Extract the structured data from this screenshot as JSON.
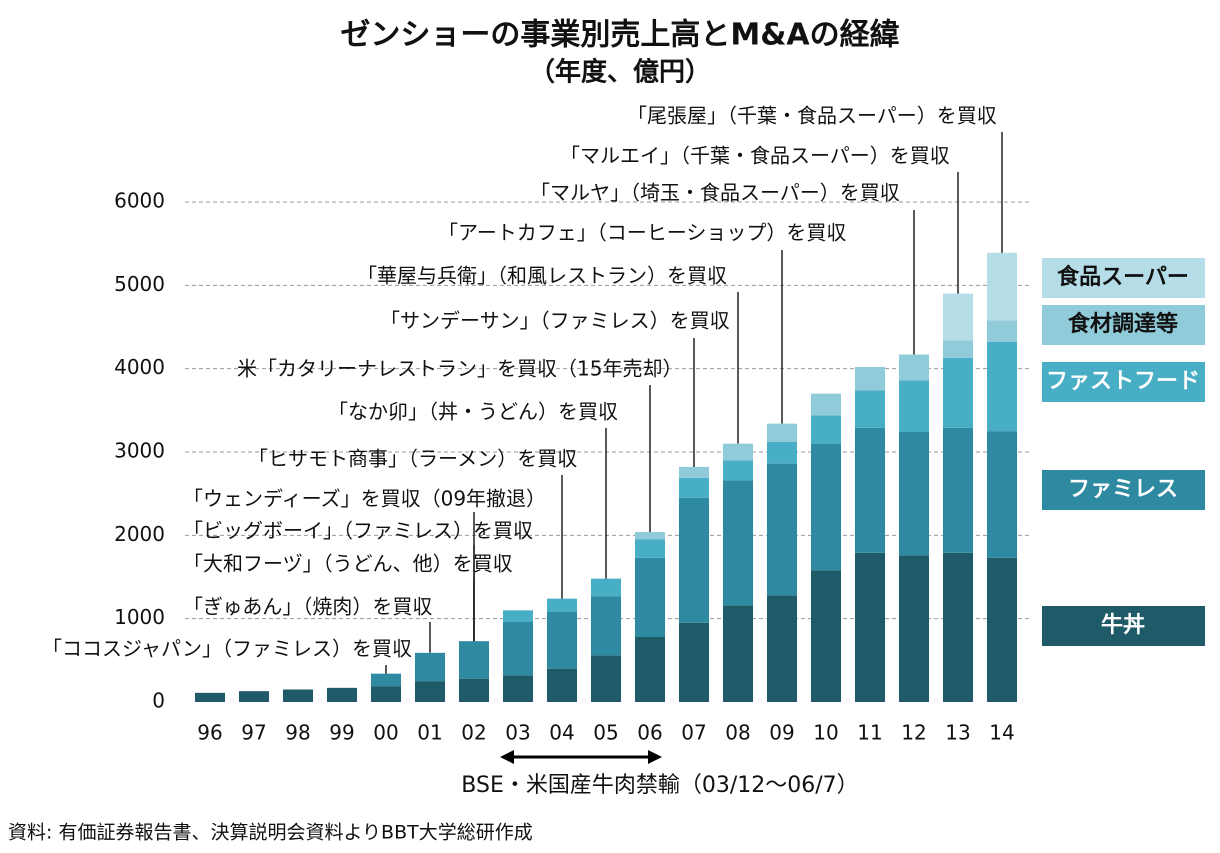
{
  "chart_data": {
    "type": "stacked_bar",
    "title": "ゼンショーの事業別売上高とM&Aの経緯",
    "subtitle": "（年度、億円）",
    "categories": [
      "96",
      "97",
      "98",
      "99",
      "00",
      "01",
      "02",
      "03",
      "04",
      "05",
      "06",
      "07",
      "08",
      "09",
      "10",
      "11",
      "12",
      "13",
      "14"
    ],
    "series": [
      {
        "name": "牛丼",
        "color": "#1f5a68",
        "values": [
          110,
          130,
          150,
          170,
          190,
          250,
          280,
          320,
          400,
          560,
          780,
          950,
          1160,
          1280,
          1580,
          1790,
          1760,
          1790,
          1730
        ]
      },
      {
        "name": "ファミレス",
        "color": "#2e8aa0",
        "values": [
          null,
          null,
          null,
          null,
          150,
          340,
          450,
          640,
          680,
          710,
          950,
          1500,
          1500,
          1580,
          1520,
          1500,
          1480,
          1500,
          1520
        ]
      },
      {
        "name": "ファストフード",
        "color": "#47aec6",
        "values": [
          null,
          null,
          null,
          null,
          null,
          null,
          null,
          140,
          160,
          210,
          220,
          240,
          240,
          260,
          340,
          450,
          620,
          840,
          1070
        ]
      },
      {
        "name": "食材調達等",
        "color": "#8fcbd9",
        "values": [
          null,
          null,
          null,
          null,
          null,
          null,
          null,
          null,
          null,
          null,
          90,
          130,
          200,
          220,
          260,
          280,
          310,
          210,
          260
        ]
      },
      {
        "name": "食品スーパー",
        "color": "#b5dde7",
        "values": [
          null,
          null,
          null,
          null,
          null,
          null,
          null,
          null,
          null,
          null,
          null,
          null,
          null,
          null,
          null,
          null,
          null,
          560,
          810
        ]
      }
    ],
    "ylim": [
      0,
      6000
    ],
    "yticks": [
      0,
      1000,
      2000,
      3000,
      4000,
      5000,
      6000
    ],
    "grid": true,
    "annotations": [
      "「ココスジャパン」（ファミレス）を買収",
      "「ぎゅあん」（焼肉）を買収",
      "「大和フーヅ」（うどん、他）を買収",
      "「ビッグボーイ」（ファミレス）を買収",
      "「ウェンディーズ」を買収（09年撤退）",
      "「ヒサモト商事」（ラーメン）を買収",
      "「なか卯」（丼・うどん）を買収",
      "米「カタリーナレストラン」を買収（15年売却）",
      "「サンデーサン」（ファミレス）を買収",
      "「華屋与兵衛」（和風レストラン）を買収",
      "「アートカフェ」（コーヒーショップ）を買収",
      "「マルヤ」（埼玉・食品スーパー）を買収",
      "「マルエイ」（千葉・食品スーパー）を買収",
      "「尾張屋」（千葉・食品スーパー）を買収"
    ],
    "period_note": "BSE・米国産牛肉禁輸（03/12～06/7）",
    "source": "資料: 有価証券報告書、決算説明会資料よりBBT大学総研作成"
  }
}
